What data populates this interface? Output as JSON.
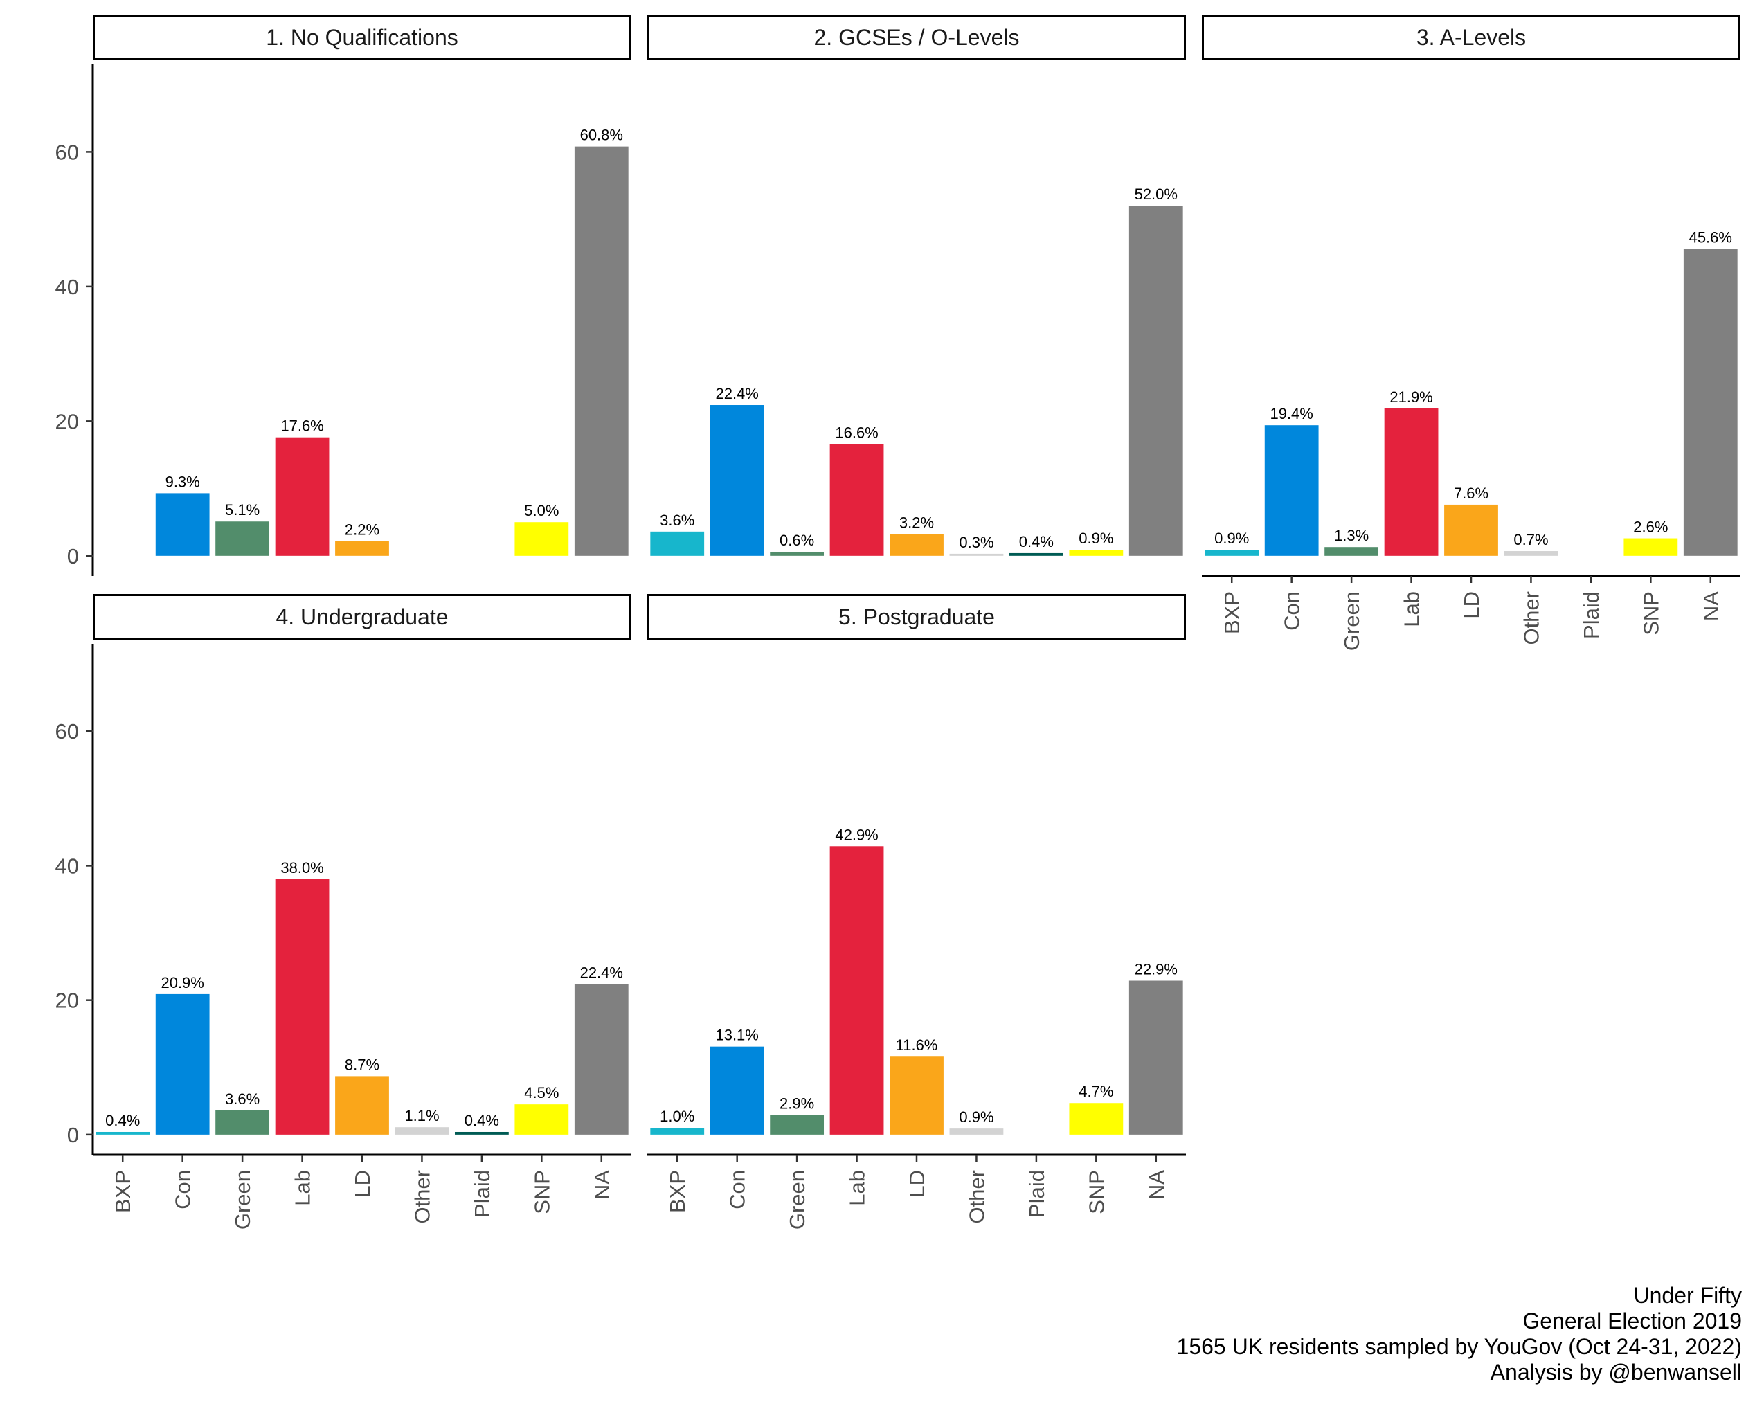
{
  "chart_data": {
    "type": "bar",
    "facet_layout": "3 columns x 2 rows",
    "categories": [
      "BXP",
      "Con",
      "Green",
      "Lab",
      "LD",
      "Other",
      "Plaid",
      "SNP",
      "NA"
    ],
    "colors": [
      "#17B6CC",
      "#0087DC",
      "#528D6B",
      "#E4223D",
      "#FAA61A",
      "#D3D3D3",
      "#005B54",
      "#FFFF00",
      "#808080"
    ],
    "y_ticks": [
      "0",
      "20",
      "40",
      "60"
    ],
    "ylim": [
      -3,
      73
    ],
    "grid": false,
    "legend": "none",
    "panels": [
      {
        "title": "1. No Qualifications",
        "values": [
          null,
          9.3,
          5.1,
          17.6,
          2.2,
          null,
          null,
          5.0,
          60.8
        ],
        "labels": [
          "",
          "9.3%",
          "5.1%",
          "17.6%",
          "2.2%",
          "",
          "",
          "5.0%",
          "60.8%"
        ]
      },
      {
        "title": "2. GCSEs / O-Levels",
        "values": [
          3.6,
          22.4,
          0.6,
          16.6,
          3.2,
          0.3,
          0.4,
          0.9,
          52.0
        ],
        "labels": [
          "3.6%",
          "22.4%",
          "0.6%",
          "16.6%",
          "3.2%",
          "0.3%",
          "0.4%",
          "0.9%",
          "52.0%"
        ]
      },
      {
        "title": "3. A-Levels",
        "values": [
          0.9,
          19.4,
          1.3,
          21.9,
          7.6,
          0.7,
          null,
          2.6,
          45.6
        ],
        "labels": [
          "0.9%",
          "19.4%",
          "1.3%",
          "21.9%",
          "7.6%",
          "0.7%",
          "",
          "2.6%",
          "45.6%"
        ]
      },
      {
        "title": "4. Undergraduate",
        "values": [
          0.4,
          20.9,
          3.6,
          38.0,
          8.7,
          1.1,
          0.4,
          4.5,
          22.4
        ],
        "labels": [
          "0.4%",
          "20.9%",
          "3.6%",
          "38.0%",
          "8.7%",
          "1.1%",
          "0.4%",
          "4.5%",
          "22.4%"
        ]
      },
      {
        "title": "5. Postgraduate",
        "values": [
          1.0,
          13.1,
          2.9,
          42.9,
          11.6,
          0.9,
          null,
          4.7,
          22.9
        ],
        "labels": [
          "1.0%",
          "13.1%",
          "2.9%",
          "42.9%",
          "11.6%",
          "0.9%",
          "",
          "4.7%",
          "22.9%"
        ]
      }
    ]
  },
  "caption": [
    "Under Fifty",
    "General Election 2019",
    "1565 UK residents sampled by YouGov (Oct 24-31, 2022)",
    "Analysis by @benwansell"
  ]
}
